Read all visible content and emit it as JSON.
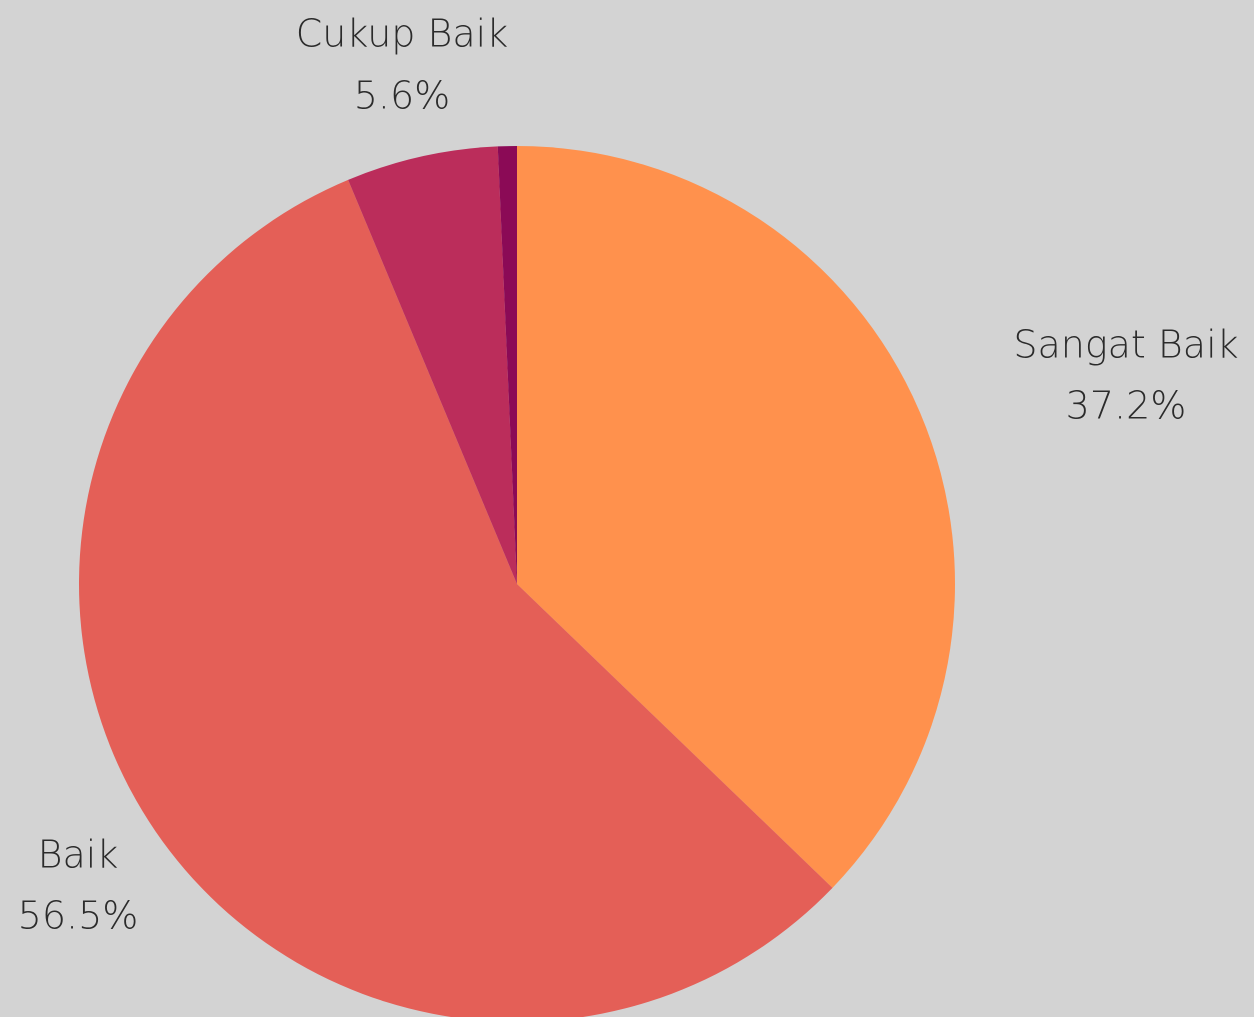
{
  "chart_data": {
    "type": "pie",
    "categories": [
      "Sangat Baik",
      "Baik",
      "Cukup Baik",
      null
    ],
    "values": [
      37.2,
      56.5,
      5.6,
      0.7
    ],
    "value_labels": [
      "37.2%",
      "56.5%",
      "5.6%",
      null
    ],
    "colors": [
      "#ff914d",
      "#e45f57",
      "#bb2d5b",
      "#8b0a56"
    ]
  }
}
